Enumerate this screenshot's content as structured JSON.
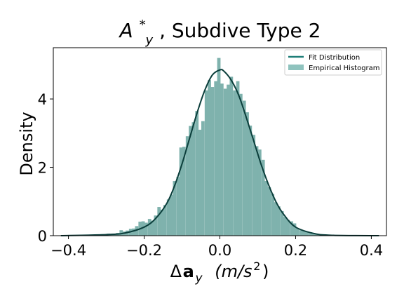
{
  "colors": {
    "bar": "#7fb2ad",
    "fit_line": "#0b3e3b",
    "legend_line": "#1e7e78",
    "legend_patch": "#8fc3be",
    "axis": "#000000"
  },
  "chart_data": {
    "type": "bar",
    "title_parts": {
      "base": "A",
      "sup": "*",
      "sub": "y",
      "rest": ", Subdive Type 2"
    },
    "xlabel_parts": {
      "delta": "Δ",
      "bold": "a",
      "sub": "y",
      "units_pre": "(m/s",
      "units_sup": "2",
      "units_post": ")"
    },
    "ylabel": "Density",
    "xlim": [
      -0.44,
      0.44
    ],
    "ylim": [
      0,
      5.5
    ],
    "xticks": [
      -0.4,
      -0.2,
      0.0,
      0.2,
      0.4
    ],
    "xtick_labels": [
      "−0.4",
      "−0.2",
      "0.0",
      "0.2",
      "0.4"
    ],
    "yticks": [
      0,
      2,
      4
    ],
    "ytick_labels": [
      "0",
      "2",
      "4"
    ],
    "legend": {
      "placement": "top-right",
      "entries": [
        "Fit Distribution",
        "Empirical Histogram"
      ]
    },
    "histogram": {
      "bin_width": 0.0083,
      "bins": [
        [
          -0.411,
          0.01
        ],
        [
          -0.403,
          0.0
        ],
        [
          -0.395,
          0.01
        ],
        [
          -0.386,
          0.0
        ],
        [
          -0.378,
          0.0
        ],
        [
          -0.37,
          0.01
        ],
        [
          -0.361,
          0.0
        ],
        [
          -0.353,
          0.01
        ],
        [
          -0.345,
          0.01
        ],
        [
          -0.336,
          0.0
        ],
        [
          -0.328,
          0.01
        ],
        [
          -0.32,
          0.02
        ],
        [
          -0.311,
          0.02
        ],
        [
          -0.303,
          0.03
        ],
        [
          -0.295,
          0.06
        ],
        [
          -0.286,
          0.04
        ],
        [
          -0.278,
          0.05
        ],
        [
          -0.27,
          0.08
        ],
        [
          -0.261,
          0.16
        ],
        [
          -0.253,
          0.12
        ],
        [
          -0.245,
          0.15
        ],
        [
          -0.236,
          0.2
        ],
        [
          -0.228,
          0.21
        ],
        [
          -0.22,
          0.28
        ],
        [
          -0.211,
          0.41
        ],
        [
          -0.203,
          0.42
        ],
        [
          -0.195,
          0.38
        ],
        [
          -0.186,
          0.49
        ],
        [
          -0.178,
          0.44
        ],
        [
          -0.17,
          0.59
        ],
        [
          -0.161,
          0.84
        ],
        [
          -0.153,
          0.76
        ],
        [
          -0.145,
          0.9
        ],
        [
          -0.136,
          1.06
        ],
        [
          -0.128,
          1.2
        ],
        [
          -0.12,
          1.6
        ],
        [
          -0.111,
          1.72
        ],
        [
          -0.103,
          2.58
        ],
        [
          -0.095,
          2.6
        ],
        [
          -0.086,
          2.91
        ],
        [
          -0.078,
          3.21
        ],
        [
          -0.07,
          3.32
        ],
        [
          -0.061,
          3.65
        ],
        [
          -0.053,
          3.1
        ],
        [
          -0.045,
          3.35
        ],
        [
          -0.036,
          4.25
        ],
        [
          -0.028,
          4.55
        ],
        [
          -0.02,
          4.35
        ],
        [
          -0.011,
          4.52
        ],
        [
          -0.003,
          5.2
        ],
        [
          0.005,
          4.45
        ],
        [
          0.014,
          4.3
        ],
        [
          0.022,
          4.42
        ],
        [
          0.03,
          4.65
        ],
        [
          0.039,
          4.25
        ],
        [
          0.047,
          4.52
        ],
        [
          0.055,
          4.15
        ],
        [
          0.064,
          3.95
        ],
        [
          0.072,
          3.61
        ],
        [
          0.08,
          3.22
        ],
        [
          0.089,
          2.95
        ],
        [
          0.097,
          2.62
        ],
        [
          0.105,
          2.52
        ],
        [
          0.114,
          2.22
        ],
        [
          0.122,
          1.6
        ],
        [
          0.13,
          1.42
        ],
        [
          0.139,
          1.22
        ],
        [
          0.147,
          0.98
        ],
        [
          0.155,
          0.86
        ],
        [
          0.164,
          0.72
        ],
        [
          0.172,
          0.55
        ],
        [
          0.18,
          0.46
        ],
        [
          0.189,
          0.42
        ],
        [
          0.197,
          0.36
        ],
        [
          0.205,
          0.22
        ],
        [
          0.214,
          0.16
        ],
        [
          0.222,
          0.14
        ],
        [
          0.23,
          0.12
        ],
        [
          0.239,
          0.1
        ],
        [
          0.247,
          0.08
        ],
        [
          0.255,
          0.06
        ],
        [
          0.264,
          0.04
        ],
        [
          0.272,
          0.03
        ],
        [
          0.28,
          0.02
        ],
        [
          0.289,
          0.02
        ],
        [
          0.297,
          0.01
        ],
        [
          0.305,
          0.01
        ],
        [
          0.314,
          0.01
        ],
        [
          0.322,
          0.0
        ],
        [
          0.33,
          0.01
        ],
        [
          0.339,
          0.0
        ],
        [
          0.347,
          0.01
        ],
        [
          0.355,
          0.0
        ],
        [
          0.364,
          0.0
        ],
        [
          0.372,
          0.01
        ],
        [
          0.38,
          0.0
        ],
        [
          0.389,
          0.0
        ],
        [
          0.397,
          0.01
        ],
        [
          0.405,
          0.0
        ],
        [
          0.414,
          0.01
        ]
      ]
    },
    "fit_distribution": {
      "x": [
        -0.42,
        -0.3,
        -0.25,
        -0.2,
        -0.17,
        -0.14,
        -0.12,
        -0.1,
        -0.08,
        -0.06,
        -0.04,
        -0.02,
        0.0,
        0.01,
        0.03,
        0.05,
        0.07,
        0.09,
        0.11,
        0.13,
        0.15,
        0.17,
        0.2,
        0.25,
        0.3,
        0.42
      ],
      "y": [
        0.0,
        0.03,
        0.08,
        0.25,
        0.5,
        0.95,
        1.45,
        2.1,
        2.85,
        3.6,
        4.25,
        4.7,
        4.85,
        4.82,
        4.55,
        4.1,
        3.45,
        2.75,
        2.05,
        1.45,
        0.95,
        0.6,
        0.25,
        0.06,
        0.01,
        0.0
      ]
    }
  }
}
